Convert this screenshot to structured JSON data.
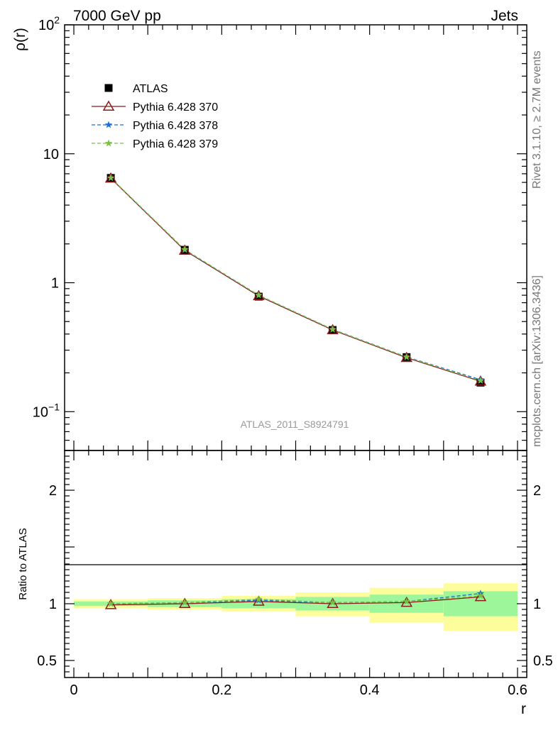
{
  "header": {
    "left": "7000 GeV pp",
    "right": "Jets",
    "side_rivet": "Rivet 3.1.10, ≥ 2.7M events",
    "side_mcplots": "mcplots.cern.ch [arXiv:1306.3436]",
    "analysis_id": "ATLAS_2011_S8924791"
  },
  "chart_data": [
    {
      "type": "line",
      "panel": "main",
      "ylabel": "ρ(r)",
      "yscale": "log",
      "ylim": [
        0.05,
        100
      ],
      "xlim": [
        -0.0125,
        0.6125
      ],
      "x": [
        0.05,
        0.15,
        0.25,
        0.35,
        0.45,
        0.55
      ],
      "yticks": [
        {
          "value": 0.1,
          "base": "10",
          "exp": "−1"
        },
        {
          "value": 1,
          "base": "1",
          "exp": ""
        },
        {
          "value": 10,
          "base": "10",
          "exp": ""
        },
        {
          "value": 100,
          "base": "10",
          "exp": "2"
        }
      ],
      "legend": {
        "position": "top-left"
      },
      "series": [
        {
          "name": "ATLAS",
          "values": [
            6.5,
            1.8,
            0.78,
            0.43,
            0.265,
            0.168
          ],
          "color": "#000000",
          "marker": "square",
          "line": "none"
        },
        {
          "name": "Pythia 6.428 370",
          "values": [
            6.45,
            1.78,
            0.79,
            0.43,
            0.262,
            0.172
          ],
          "color": "#8b1a1a",
          "marker": "open-triangle",
          "line": "solid"
        },
        {
          "name": "Pythia 6.428 378",
          "values": [
            6.5,
            1.8,
            0.8,
            0.435,
            0.266,
            0.177
          ],
          "color": "#1a6fd6",
          "marker": "star",
          "line": "dashed"
        },
        {
          "name": "Pythia 6.428 379",
          "values": [
            6.5,
            1.81,
            0.8,
            0.434,
            0.265,
            0.174
          ],
          "color": "#7ac143",
          "marker": "star",
          "line": "dashed"
        }
      ]
    },
    {
      "type": "line",
      "panel": "ratio",
      "ylabel": "Ratio to ATLAS",
      "xlabel": "r",
      "ylim": [
        0.35,
        2.35
      ],
      "xlim": [
        -0.0125,
        0.6125
      ],
      "yticks": [
        0.5,
        1,
        2
      ],
      "xticks": [
        {
          "value": 0,
          "label": "0"
        },
        {
          "value": 0.2,
          "label": "0.2"
        },
        {
          "value": 0.4,
          "label": "0.4"
        },
        {
          "value": 0.6,
          "label": "0.6"
        }
      ],
      "x": [
        0.05,
        0.15,
        0.25,
        0.35,
        0.45,
        0.55
      ],
      "bins": [
        [
          0.0,
          0.1
        ],
        [
          0.1,
          0.2
        ],
        [
          0.2,
          0.3
        ],
        [
          0.3,
          0.4
        ],
        [
          0.4,
          0.5
        ],
        [
          0.5,
          0.6
        ]
      ],
      "stat_band": [
        [
          0.98,
          1.02
        ],
        [
          0.97,
          1.03
        ],
        [
          0.96,
          1.04
        ],
        [
          0.94,
          1.06
        ],
        [
          0.92,
          1.08
        ],
        [
          0.89,
          1.11
        ]
      ],
      "total_band": [
        [
          0.96,
          1.04
        ],
        [
          0.95,
          1.05
        ],
        [
          0.93,
          1.07
        ],
        [
          0.89,
          1.1
        ],
        [
          0.83,
          1.14
        ],
        [
          0.76,
          1.18
        ]
      ],
      "band_colors": {
        "stat": "#9df79a",
        "total": "#fdfd9b"
      },
      "series": [
        {
          "name": "Pythia 6.428 370",
          "values": [
            0.99,
            1.0,
            1.02,
            1.0,
            1.01,
            1.06
          ],
          "color": "#8b1a1a",
          "marker": "open-triangle",
          "line": "solid"
        },
        {
          "name": "Pythia 6.428 378",
          "values": [
            1.0,
            1.01,
            1.03,
            1.01,
            1.02,
            1.09
          ],
          "color": "#1a6fd6",
          "marker": "star",
          "line": "dashed"
        },
        {
          "name": "Pythia 6.428 379",
          "values": [
            1.0,
            1.01,
            1.04,
            1.01,
            1.02,
            1.07
          ],
          "color": "#7ac143",
          "marker": "star",
          "line": "dashed"
        }
      ]
    }
  ]
}
